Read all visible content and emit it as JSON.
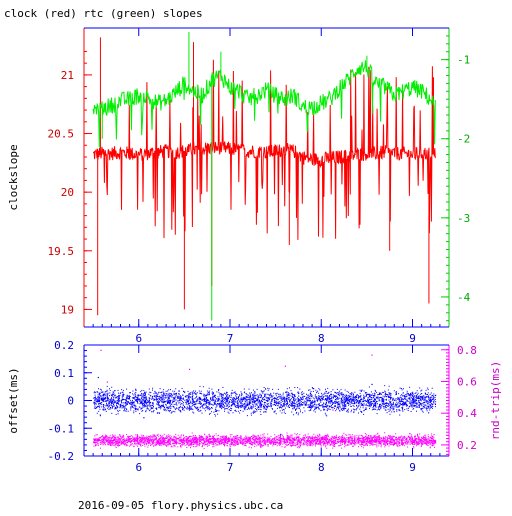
{
  "chart_data": [
    {
      "type": "line",
      "title": "clock (red) rtc (green) slopes",
      "ylabel": "clockslope",
      "x_range": [
        5.4,
        9.4
      ],
      "x_ticks": [
        "6",
        "7",
        "8",
        "9"
      ],
      "ylim": [
        18.85,
        21.4
      ],
      "y_ticks": [
        "19",
        "19.5",
        "20",
        "20.5",
        "21"
      ],
      "ylim_right": [
        -4.38,
        -0.6
      ],
      "y_ticks_right": [
        "-1",
        "-2",
        "-3",
        "-4"
      ],
      "series": [
        {
          "name": "clock",
          "axis": "left",
          "color": "#ff0000",
          "x": [
            5.5,
            5.6,
            5.7,
            5.8,
            5.9,
            6.0,
            6.1,
            6.2,
            6.3,
            6.4,
            6.5,
            6.6,
            6.7,
            6.8,
            6.9,
            7.0,
            7.1,
            7.2,
            7.3,
            7.4,
            7.5,
            7.6,
            7.7,
            7.8,
            7.9,
            8.0,
            8.1,
            8.2,
            8.3,
            8.4,
            8.5,
            8.6,
            8.7,
            8.8,
            8.9,
            9.0,
            9.1,
            9.2,
            9.25
          ],
          "y": [
            20.32,
            20.33,
            20.33,
            20.34,
            20.33,
            20.32,
            20.33,
            20.34,
            20.35,
            20.34,
            20.35,
            20.36,
            20.37,
            20.38,
            20.38,
            20.37,
            20.36,
            20.35,
            20.35,
            20.34,
            20.35,
            20.36,
            20.35,
            20.3,
            20.28,
            20.28,
            20.29,
            20.3,
            20.31,
            20.32,
            20.33,
            20.33,
            20.34,
            20.33,
            20.33,
            20.32,
            20.33,
            20.33,
            20.33
          ],
          "spikes": [
            [
              5.55,
              18.95
            ],
            [
              5.58,
              21.32
            ],
            [
              6.5,
              19.0
            ],
            [
              6.6,
              21.28
            ],
            [
              6.8,
              19.2
            ],
            [
              7.65,
              19.55
            ],
            [
              8.75,
              19.5
            ],
            [
              9.18,
              19.05
            ],
            [
              9.23,
              20.98
            ]
          ]
        },
        {
          "name": "rtc",
          "axis": "right",
          "color": "#00ee00",
          "x": [
            5.5,
            5.6,
            5.7,
            5.8,
            5.9,
            6.0,
            6.1,
            6.2,
            6.3,
            6.4,
            6.5,
            6.6,
            6.7,
            6.8,
            6.9,
            7.0,
            7.1,
            7.2,
            7.3,
            7.4,
            7.5,
            7.6,
            7.7,
            7.8,
            7.9,
            8.0,
            8.1,
            8.2,
            8.3,
            8.4,
            8.5,
            8.6,
            8.7,
            8.8,
            8.9,
            9.0,
            9.1,
            9.2,
            9.25
          ],
          "y": [
            -1.65,
            -1.62,
            -1.58,
            -1.52,
            -1.5,
            -1.45,
            -1.48,
            -1.55,
            -1.52,
            -1.42,
            -1.3,
            -1.4,
            -1.45,
            -1.25,
            -1.2,
            -1.35,
            -1.4,
            -1.5,
            -1.45,
            -1.38,
            -1.45,
            -1.5,
            -1.45,
            -1.6,
            -1.6,
            -1.55,
            -1.5,
            -1.35,
            -1.25,
            -1.1,
            -1.1,
            -1.3,
            -1.35,
            -1.45,
            -1.4,
            -1.35,
            -1.4,
            -1.5,
            -1.6
          ],
          "spikes": [
            [
              5.6,
              -2.0
            ],
            [
              6.55,
              -0.65
            ],
            [
              6.8,
              -4.3
            ],
            [
              6.9,
              -0.9
            ],
            [
              8.5,
              -0.95
            ]
          ]
        }
      ]
    },
    {
      "type": "scatter",
      "ylabel": "offset(ms)",
      "ylabel_right": "rnd-trip(ms)",
      "x_range": [
        5.4,
        9.4
      ],
      "x_ticks": [
        "6",
        "7",
        "8",
        "9"
      ],
      "ylim": [
        -0.2,
        0.2
      ],
      "y_ticks": [
        "-0.2",
        "-0.1",
        "0",
        "0.1",
        "0.2"
      ],
      "ylim_right": [
        0.13,
        0.83
      ],
      "y_ticks_right": [
        "0.2",
        "0.4",
        "0.6",
        "0.8"
      ],
      "series": [
        {
          "name": "offset",
          "axis": "left",
          "color": "#0000ff",
          "x_start": 5.5,
          "x_end": 9.25,
          "center": 0.0,
          "spread": 0.028,
          "outliers": [
            [
              5.55,
              0.085
            ],
            [
              6.05,
              -0.06
            ],
            [
              7.55,
              -0.12
            ],
            [
              8.55,
              0.06
            ]
          ]
        },
        {
          "name": "rnd-trip",
          "axis": "right",
          "color": "#ff00ff",
          "x_start": 5.5,
          "x_end": 9.25,
          "center": 0.23,
          "spread": 0.025,
          "outliers": [
            [
              5.58,
              0.8
            ],
            [
              5.65,
              0.6
            ],
            [
              6.55,
              0.68
            ],
            [
              7.6,
              0.7
            ],
            [
              8.55,
              0.77
            ],
            [
              8.15,
              0.42
            ]
          ]
        }
      ]
    }
  ],
  "footer": "2016-09-05 flory.physics.ubc.ca"
}
